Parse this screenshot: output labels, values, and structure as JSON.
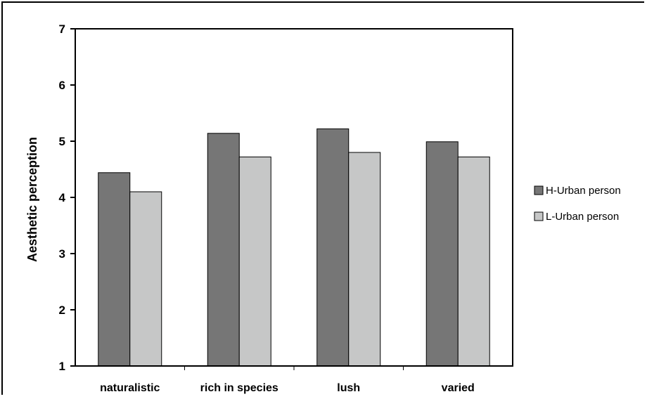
{
  "chart_data": {
    "type": "bar",
    "categories": [
      "naturalistic",
      "rich in species",
      "lush",
      "varied"
    ],
    "series": [
      {
        "name": "H-Urban person",
        "values": [
          4.44,
          5.14,
          5.22,
          4.99
        ],
        "color": "#767676"
      },
      {
        "name": "L-Urban person",
        "values": [
          4.1,
          4.72,
          4.8,
          4.72
        ],
        "color": "#c6c7c7"
      }
    ],
    "title": "",
    "xlabel": "",
    "ylabel": "Aesthetic perception",
    "ylim": [
      1,
      7
    ],
    "yticks": [
      "1",
      "2",
      "3",
      "4",
      "5",
      "6",
      "7"
    ],
    "grid": false,
    "legend_position": "right"
  }
}
